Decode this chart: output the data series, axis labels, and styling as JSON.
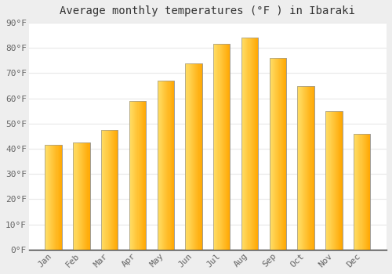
{
  "title": "Average monthly temperatures (°F ) in Ibaraki",
  "months": [
    "Jan",
    "Feb",
    "Mar",
    "Apr",
    "May",
    "Jun",
    "Jul",
    "Aug",
    "Sep",
    "Oct",
    "Nov",
    "Dec"
  ],
  "values": [
    41.5,
    42.5,
    47.5,
    59.0,
    67.0,
    74.0,
    81.5,
    84.0,
    76.0,
    65.0,
    55.0,
    46.0
  ],
  "bar_color_top": "#FFD966",
  "bar_color_bottom": "#FFA500",
  "bar_color_right": "#E08000",
  "bar_edge_color": "#999999",
  "ylim": [
    0,
    90
  ],
  "yticks": [
    0,
    10,
    20,
    30,
    40,
    50,
    60,
    70,
    80,
    90
  ],
  "ytick_labels": [
    "0°F",
    "10°F",
    "20°F",
    "30°F",
    "40°F",
    "50°F",
    "60°F",
    "70°F",
    "80°F",
    "90°F"
  ],
  "title_fontsize": 10,
  "tick_fontsize": 8,
  "plot_bg_color": "#ffffff",
  "fig_bg_color": "#eeeeee",
  "grid_color": "#e8e8e8",
  "font_family": "monospace",
  "bar_width": 0.6
}
